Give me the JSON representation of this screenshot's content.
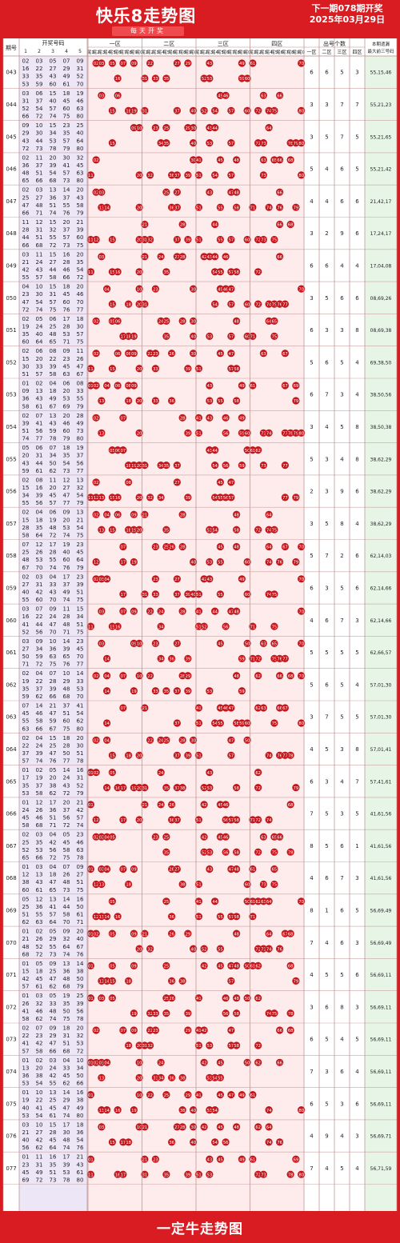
{
  "header": {
    "title": "快乐8走势图",
    "subtitle": "每天开奖",
    "next_issue": "下一期078期开奖",
    "next_date": "2025年03月29日"
  },
  "footer": {
    "brand": "一定牛走势图"
  },
  "colors": {
    "frame": "#d91c22",
    "ball": "#c4161c",
    "zone_bg": "#fdeceb",
    "draw_bg": "#ece6f7",
    "count_bg": "#fdeceb",
    "tail_bg": "#e6f5e6",
    "ghost_text": "#e8b7b7"
  },
  "table": {
    "col_issue": "期号",
    "col_draw": "开奖号码",
    "col_counts": "出号个数",
    "col_last": "本期遗漏最大前三号码",
    "zones": [
      "一区",
      "二区",
      "三区",
      "四区"
    ],
    "tail_labels": [
      "尾1",
      "尾2",
      "尾3",
      "尾4",
      "尾5",
      "尾6",
      "尾7",
      "尾8",
      "尾9",
      "尾0"
    ]
  },
  "chart_data": {
    "type": "table",
    "title": "快乐8走势图",
    "columns": [
      "期号",
      "开奖号码",
      "一区",
      "二区",
      "三区",
      "四区",
      "出号个数",
      "本期遗漏最大前三号码"
    ],
    "rows": [
      {
        "issue": "043",
        "draw": [
          2,
          3,
          5,
          7,
          9,
          16,
          22,
          27,
          29,
          31,
          33,
          35,
          43,
          49,
          52,
          53,
          59,
          60,
          61,
          70
        ],
        "counts": [
          6,
          6,
          5,
          3
        ],
        "last3": "55,15,46"
      },
      {
        "issue": "044",
        "draw": [
          3,
          6,
          15,
          18,
          19,
          31,
          37,
          40,
          45,
          46,
          52,
          54,
          57,
          60,
          63,
          66,
          72,
          74,
          75,
          80
        ],
        "counts": [
          3,
          3,
          7,
          7
        ],
        "last3": "55,21,23"
      },
      {
        "issue": "045",
        "draw": [
          9,
          10,
          15,
          23,
          25,
          29,
          30,
          34,
          35,
          40,
          43,
          44,
          53,
          57,
          64,
          72,
          73,
          78,
          79,
          80
        ],
        "counts": [
          3,
          5,
          7,
          5
        ],
        "last3": "55,21,65"
      },
      {
        "issue": "046",
        "draw": [
          2,
          11,
          20,
          30,
          32,
          36,
          37,
          39,
          41,
          45,
          48,
          51,
          54,
          57,
          63,
          65,
          66,
          68,
          73,
          80
        ],
        "counts": [
          5,
          4,
          6,
          5
        ],
        "last3": "55,21,42"
      },
      {
        "issue": "047",
        "draw": [
          2,
          3,
          13,
          14,
          20,
          25,
          27,
          36,
          37,
          43,
          47,
          48,
          51,
          55,
          58,
          66,
          71,
          74,
          76,
          79
        ],
        "counts": [
          4,
          4,
          6,
          6
        ],
        "last3": "21,42,17"
      },
      {
        "issue": "048",
        "draw": [
          11,
          12,
          15,
          20,
          21,
          28,
          31,
          32,
          37,
          39,
          44,
          51,
          55,
          57,
          60,
          66,
          68,
          72,
          73,
          75
        ],
        "counts": [
          3,
          2,
          9,
          6
        ],
        "last3": "17,24,17"
      },
      {
        "issue": "049",
        "draw": [
          3,
          11,
          15,
          16,
          20,
          21,
          24,
          27,
          28,
          35,
          42,
          43,
          44,
          46,
          54,
          55,
          57,
          58,
          66,
          72
        ],
        "counts": [
          6,
          6,
          4,
          4
        ],
        "last3": "17,04,08"
      },
      {
        "issue": "050",
        "draw": [
          4,
          10,
          15,
          18,
          20,
          23,
          30,
          31,
          45,
          46,
          47,
          54,
          57,
          60,
          70,
          72,
          74,
          75,
          76,
          77
        ],
        "counts": [
          3,
          5,
          6,
          6
        ],
        "last3": "08,69,26"
      },
      {
        "issue": "051",
        "draw": [
          2,
          5,
          6,
          17,
          18,
          19,
          24,
          25,
          28,
          30,
          35,
          40,
          48,
          53,
          57,
          60,
          64,
          65,
          71,
          75
        ],
        "counts": [
          6,
          3,
          3,
          8
        ],
        "last3": "08,69,38"
      },
      {
        "issue": "052",
        "draw": [
          2,
          6,
          8,
          9,
          11,
          15,
          20,
          22,
          23,
          26,
          30,
          33,
          39,
          45,
          47,
          51,
          57,
          58,
          63,
          67
        ],
        "counts": [
          5,
          6,
          5,
          4
        ],
        "last3": "69,38,50"
      },
      {
        "issue": "053",
        "draw": [
          1,
          2,
          4,
          6,
          8,
          9,
          13,
          18,
          20,
          33,
          36,
          43,
          49,
          53,
          55,
          58,
          61,
          67,
          69,
          79
        ],
        "counts": [
          6,
          7,
          3,
          4
        ],
        "last3": "38,50,56"
      },
      {
        "issue": "054",
        "draw": [
          2,
          7,
          13,
          20,
          28,
          39,
          41,
          43,
          46,
          49,
          51,
          56,
          59,
          60,
          73,
          74,
          77,
          78,
          79,
          80
        ],
        "counts": [
          3,
          4,
          5,
          8
        ],
        "last3": "38,50,38"
      },
      {
        "issue": "055",
        "draw": [
          5,
          6,
          7,
          18,
          19,
          20,
          31,
          34,
          35,
          37,
          43,
          44,
          50,
          54,
          56,
          59,
          61,
          62,
          73,
          77
        ],
        "counts": [
          5,
          3,
          4,
          8
        ],
        "last3": "38,62,29"
      },
      {
        "issue": "056",
        "draw": [
          2,
          8,
          11,
          12,
          13,
          15,
          16,
          20,
          27,
          32,
          34,
          39,
          45,
          47,
          54,
          55,
          56,
          57,
          77,
          79
        ],
        "counts": [
          2,
          3,
          9,
          6
        ],
        "last3": "38,62,29"
      },
      {
        "issue": "057",
        "draw": [
          2,
          4,
          6,
          9,
          13,
          15,
          18,
          19,
          20,
          21,
          28,
          35,
          48,
          53,
          54,
          58,
          64,
          72,
          74,
          75
        ],
        "counts": [
          3,
          5,
          8,
          4
        ],
        "last3": "38,62,29"
      },
      {
        "issue": "058",
        "draw": [
          7,
          12,
          17,
          19,
          23,
          25,
          26,
          28,
          40,
          45,
          48,
          53,
          55,
          60,
          64,
          67,
          70,
          74,
          76,
          79
        ],
        "counts": [
          5,
          7,
          2,
          6
        ],
        "last3": "62,14,03"
      },
      {
        "issue": "059",
        "draw": [
          2,
          3,
          4,
          17,
          23,
          27,
          31,
          33,
          37,
          39,
          40,
          42,
          43,
          49,
          51,
          55,
          60,
          70,
          74,
          75
        ],
        "counts": [
          6,
          3,
          5,
          6
        ],
        "last3": "62,14,66"
      },
      {
        "issue": "060",
        "draw": [
          3,
          7,
          9,
          11,
          15,
          16,
          22,
          24,
          28,
          34,
          41,
          44,
          47,
          48,
          51,
          52,
          56,
          70,
          71,
          75
        ],
        "counts": [
          4,
          6,
          7,
          3
        ],
        "last3": "62,14,66"
      },
      {
        "issue": "061",
        "draw": [
          3,
          9,
          10,
          14,
          23,
          27,
          34,
          36,
          39,
          45,
          50,
          59,
          63,
          65,
          70,
          71,
          72,
          75,
          76,
          77
        ],
        "counts": [
          5,
          5,
          5,
          5
        ],
        "last3": "62,66,57"
      },
      {
        "issue": "062",
        "draw": [
          2,
          4,
          7,
          10,
          14,
          19,
          22,
          28,
          29,
          33,
          35,
          37,
          39,
          48,
          53,
          59,
          62,
          66,
          68,
          70
        ],
        "counts": [
          5,
          6,
          5,
          4
        ],
        "last3": "57,01,30"
      },
      {
        "issue": "063",
        "draw": [
          7,
          14,
          21,
          37,
          41,
          45,
          46,
          47,
          51,
          54,
          55,
          58,
          59,
          60,
          62,
          63,
          66,
          67,
          75,
          80
        ],
        "counts": [
          3,
          7,
          5,
          5
        ],
        "last3": "57,01,30"
      },
      {
        "issue": "064",
        "draw": [
          2,
          4,
          15,
          18,
          20,
          22,
          24,
          25,
          28,
          30,
          37,
          39,
          47,
          50,
          51,
          57,
          74,
          76,
          77,
          78
        ],
        "counts": [
          4,
          5,
          3,
          8
        ],
        "last3": "57,01,41"
      },
      {
        "issue": "065",
        "draw": [
          1,
          2,
          5,
          14,
          16,
          17,
          19,
          20,
          24,
          31,
          35,
          37,
          38,
          43,
          52,
          53,
          58,
          62,
          72,
          79
        ],
        "counts": [
          6,
          3,
          4,
          7
        ],
        "last3": "57,41,61"
      },
      {
        "issue": "066",
        "draw": [
          1,
          12,
          17,
          20,
          21,
          24,
          26,
          36,
          37,
          42,
          45,
          46,
          51,
          56,
          57,
          58,
          68,
          71,
          72,
          74
        ],
        "counts": [
          7,
          5,
          3,
          5
        ],
        "last3": "41,61,56"
      },
      {
        "issue": "067",
        "draw": [
          2,
          3,
          4,
          5,
          23,
          25,
          35,
          42,
          45,
          46,
          52,
          53,
          56,
          58,
          63,
          65,
          66,
          72,
          75,
          78
        ],
        "counts": [
          8,
          5,
          6,
          1
        ],
        "last3": "41,61,56"
      },
      {
        "issue": "068",
        "draw": [
          1,
          3,
          4,
          7,
          9,
          12,
          13,
          18,
          26,
          27,
          38,
          43,
          47,
          48,
          51,
          60,
          61,
          65,
          73,
          75
        ],
        "counts": [
          4,
          6,
          7,
          3
        ],
        "last3": "41,61,56"
      },
      {
        "issue": "069",
        "draw": [
          5,
          12,
          13,
          14,
          16,
          25,
          36,
          41,
          44,
          50,
          51,
          55,
          57,
          58,
          61,
          62,
          63,
          64,
          70,
          71
        ],
        "counts": [
          8,
          1,
          6,
          5
        ],
        "last3": "56,69,49"
      },
      {
        "issue": "070",
        "draw": [
          1,
          2,
          5,
          9,
          20,
          21,
          26,
          29,
          32,
          40,
          48,
          52,
          55,
          64,
          67,
          68,
          72,
          73,
          74,
          76
        ],
        "counts": [
          7,
          4,
          6,
          3
        ],
        "last3": "56,69,49"
      },
      {
        "issue": "071",
        "draw": [
          1,
          5,
          9,
          13,
          14,
          15,
          18,
          25,
          36,
          38,
          42,
          45,
          47,
          48,
          50,
          57,
          61,
          62,
          68,
          79
        ],
        "counts": [
          4,
          5,
          5,
          6
        ],
        "last3": "56,69,11"
      },
      {
        "issue": "072",
        "draw": [
          1,
          3,
          5,
          19,
          25,
          26,
          32,
          33,
          35,
          39,
          41,
          46,
          48,
          50,
          56,
          58,
          62,
          74,
          75,
          78
        ],
        "counts": [
          3,
          6,
          8,
          3
        ],
        "last3": "56,69,11"
      },
      {
        "issue": "073",
        "draw": [
          2,
          7,
          9,
          18,
          20,
          22,
          23,
          29,
          31,
          32,
          41,
          42,
          47,
          51,
          53,
          57,
          58,
          66,
          68,
          72
        ],
        "counts": [
          6,
          5,
          4,
          5
        ],
        "last3": "56,69,11"
      },
      {
        "issue": "074",
        "draw": [
          1,
          2,
          3,
          4,
          10,
          13,
          20,
          24,
          33,
          34,
          36,
          38,
          42,
          45,
          50,
          53,
          54,
          55,
          62,
          66
        ],
        "counts": [
          7,
          3,
          6,
          4
        ],
        "last3": "56,69,11"
      },
      {
        "issue": "075",
        "draw": [
          1,
          10,
          13,
          14,
          16,
          19,
          22,
          25,
          29,
          38,
          40,
          41,
          45,
          47,
          49,
          53,
          54,
          61,
          74,
          80
        ],
        "counts": [
          6,
          5,
          3,
          6
        ],
        "last3": "56,69,11"
      },
      {
        "issue": "076",
        "draw": [
          3,
          10,
          15,
          17,
          18,
          21,
          27,
          28,
          30,
          36,
          40,
          42,
          45,
          48,
          54,
          56,
          62,
          64,
          74,
          76
        ],
        "counts": [
          4,
          9,
          4,
          3
        ],
        "last3": "56,69,71"
      },
      {
        "issue": "077",
        "draw": [
          1,
          11,
          16,
          17,
          21,
          23,
          31,
          35,
          39,
          43,
          45,
          49,
          51,
          53,
          61,
          69,
          72,
          73,
          78,
          80
        ],
        "counts": [
          7,
          4,
          5,
          4
        ],
        "last3": "56,71,59"
      }
    ]
  }
}
